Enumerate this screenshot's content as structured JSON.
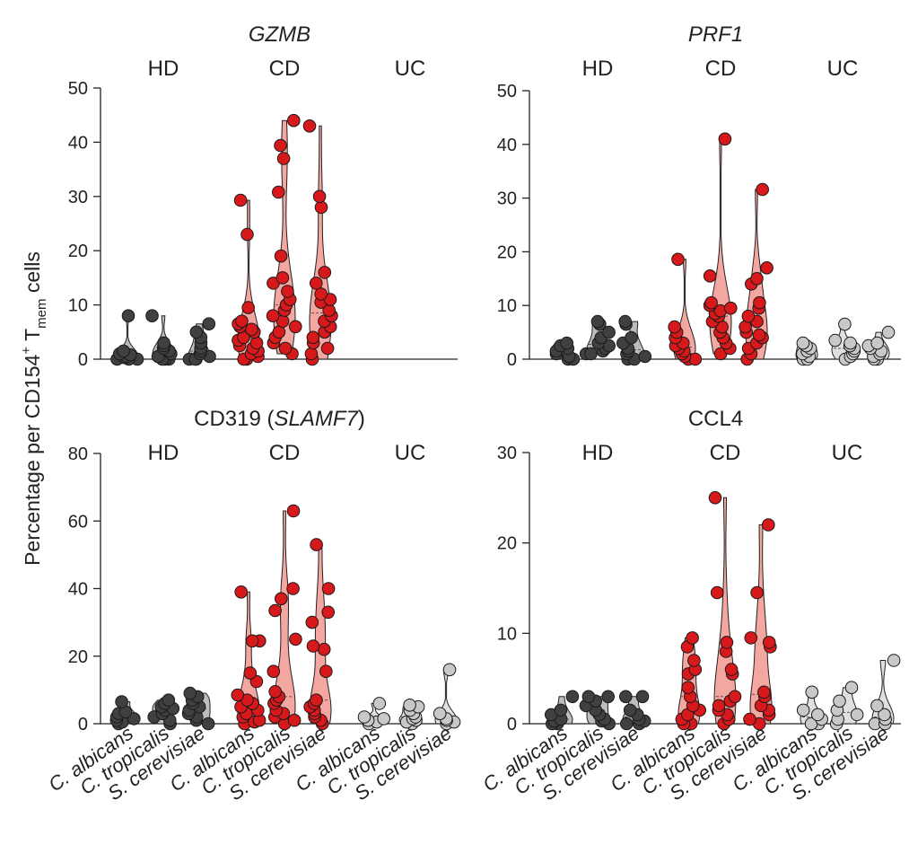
{
  "figure": {
    "y_axis_label": {
      "prefix": "Percentage per CD154",
      "superscript": "+",
      "middle": " T",
      "subscript": "mem",
      "suffix": " cells"
    }
  },
  "chart_data": [
    {
      "type": "violin-strip",
      "title": "GZMB",
      "title_parts": [
        {
          "text": "GZMB",
          "italic": true
        }
      ],
      "ylim": [
        0,
        50
      ],
      "yticks": [
        0,
        10,
        20,
        30,
        40,
        50
      ],
      "groups": [
        "HD",
        "CD",
        "UC"
      ],
      "categories": [
        "C. albicans",
        "C. tropicalis",
        "S. cerevisiae"
      ],
      "show_x_labels": false,
      "colors": {
        "HD": "#404040",
        "CD": "#d7191c",
        "UC": "#c8c8c8"
      },
      "violin_fill": {
        "HD": "#bdbdbd",
        "CD": "#f4a6a1",
        "UC": "#e0e0e0"
      },
      "series": [
        {
          "group": "HD",
          "category": "C. albicans",
          "values": [
            0,
            0,
            0,
            0.3,
            0.5,
            0.8,
            1,
            1.5,
            8
          ]
        },
        {
          "group": "HD",
          "category": "C. tropicalis",
          "values": [
            0,
            0,
            0,
            0.5,
            1,
            1.5,
            2,
            2.5,
            3,
            8
          ]
        },
        {
          "group": "HD",
          "category": "S. cerevisiae",
          "values": [
            0,
            0,
            0,
            0.5,
            1,
            1.5,
            2,
            3,
            4,
            5,
            6.5
          ]
        },
        {
          "group": "CD",
          "category": "C. albicans",
          "values": [
            0,
            0,
            0.5,
            1,
            1.5,
            2,
            2.5,
            3,
            3.5,
            4,
            5,
            5.5,
            6,
            6.5,
            7,
            9.5,
            23,
            29.3
          ]
        },
        {
          "group": "CD",
          "category": "C. tropicalis",
          "values": [
            1,
            2,
            3,
            4,
            5,
            6,
            7,
            8,
            9,
            10,
            11,
            12.5,
            14,
            15,
            19,
            30.8,
            37,
            39.4,
            44
          ]
        },
        {
          "group": "CD",
          "category": "S. cerevisiae",
          "values": [
            0,
            1,
            2,
            3,
            4,
            5,
            6,
            7,
            8,
            9,
            10.5,
            11,
            12,
            14,
            16,
            28,
            30,
            43
          ]
        }
      ]
    },
    {
      "type": "violin-strip",
      "title": "PRF1",
      "title_parts": [
        {
          "text": "PRF1",
          "italic": true
        }
      ],
      "ylim": [
        0,
        50
      ],
      "yticks": [
        0,
        10,
        20,
        30,
        40,
        50
      ],
      "groups": [
        "HD",
        "CD",
        "UC"
      ],
      "categories": [
        "C. albicans",
        "C. tropicalis",
        "S. cerevisiae"
      ],
      "show_x_labels": false,
      "colors": {
        "HD": "#404040",
        "CD": "#d7191c",
        "UC": "#c8c8c8"
      },
      "violin_fill": {
        "HD": "#bdbdbd",
        "CD": "#f4a6a1",
        "UC": "#e0e0e0"
      },
      "series": [
        {
          "group": "HD",
          "category": "C. albicans",
          "values": [
            0,
            0,
            0.5,
            1,
            1.5,
            2,
            2.5,
            3
          ]
        },
        {
          "group": "HD",
          "category": "C. tropicalis",
          "values": [
            1,
            1,
            1.5,
            2,
            2.5,
            3,
            4,
            5,
            6.5,
            7
          ]
        },
        {
          "group": "HD",
          "category": "S. cerevisiae",
          "values": [
            0,
            0,
            0.5,
            1,
            1.5,
            2,
            3,
            4,
            6.5,
            7
          ]
        },
        {
          "group": "CD",
          "category": "C. albicans",
          "values": [
            0,
            0,
            0.5,
            1,
            1.5,
            2,
            2.5,
            3,
            4,
            5,
            6,
            18.6
          ]
        },
        {
          "group": "CD",
          "category": "C. tropicalis",
          "values": [
            1,
            2,
            3,
            4,
            5,
            6,
            7,
            8,
            8.5,
            9,
            9.5,
            10,
            10.5,
            15.5,
            41
          ]
        },
        {
          "group": "CD",
          "category": "S. cerevisiae",
          "values": [
            0,
            1,
            2,
            3,
            4,
            4.5,
            5,
            6,
            7,
            8,
            9.5,
            10.5,
            14,
            15,
            17,
            31.6
          ]
        },
        {
          "group": "UC",
          "category": "C. albicans",
          "values": [
            0,
            0,
            0.5,
            1,
            1.5,
            2,
            2.5,
            3
          ]
        },
        {
          "group": "UC",
          "category": "C. tropicalis",
          "values": [
            0,
            0.5,
            1,
            1.5,
            2,
            2.5,
            3,
            3.5,
            6.5
          ]
        },
        {
          "group": "UC",
          "category": "S. cerevisiae",
          "values": [
            0,
            0,
            0.5,
            1,
            1.5,
            2,
            2.5,
            3,
            5
          ]
        }
      ]
    },
    {
      "type": "violin-strip",
      "title": "CD319 (SLAMF7)",
      "title_parts": [
        {
          "text": "CD319 (",
          "italic": false
        },
        {
          "text": "SLAMF7",
          "italic": true
        },
        {
          "text": ")",
          "italic": false
        }
      ],
      "ylim": [
        0,
        80
      ],
      "yticks": [
        0,
        20,
        40,
        60,
        80
      ],
      "groups": [
        "HD",
        "CD",
        "UC"
      ],
      "categories": [
        "C. albicans",
        "C. tropicalis",
        "S. cerevisiae"
      ],
      "show_x_labels": true,
      "colors": {
        "HD": "#404040",
        "CD": "#d7191c",
        "UC": "#c8c8c8"
      },
      "violin_fill": {
        "HD": "#bdbdbd",
        "CD": "#f4a6a1",
        "UC": "#e0e0e0"
      },
      "series": [
        {
          "group": "HD",
          "category": "C. albicans",
          "values": [
            0,
            0.5,
            1,
            1.5,
            2,
            3,
            3.5,
            6.5
          ]
        },
        {
          "group": "HD",
          "category": "C. tropicalis",
          "values": [
            0,
            1,
            2,
            3,
            4,
            4.5,
            5,
            6,
            7
          ]
        },
        {
          "group": "HD",
          "category": "S. cerevisiae",
          "values": [
            0,
            1,
            2,
            3,
            4,
            5,
            6,
            7,
            8,
            9
          ]
        },
        {
          "group": "CD",
          "category": "C. albicans",
          "values": [
            0,
            0.5,
            1,
            2,
            3,
            4,
            5,
            6,
            7,
            8.5,
            12.5,
            15,
            24.5,
            24.5,
            39
          ]
        },
        {
          "group": "CD",
          "category": "C. tropicalis",
          "values": [
            0,
            1,
            2,
            3,
            4,
            6,
            7,
            8,
            9.5,
            15.5,
            25,
            33.5,
            37,
            40,
            63
          ]
        },
        {
          "group": "CD",
          "category": "S. cerevisiae",
          "values": [
            0,
            1,
            2,
            3,
            4,
            5,
            6,
            7,
            15.5,
            22,
            23,
            30,
            33,
            40,
            53
          ]
        },
        {
          "group": "UC",
          "category": "C. albicans",
          "values": [
            0,
            0.5,
            1,
            1.5,
            2,
            6
          ]
        },
        {
          "group": "UC",
          "category": "C. tropicalis",
          "values": [
            0,
            0.5,
            1,
            1.5,
            2,
            3,
            4,
            5,
            5.5
          ]
        },
        {
          "group": "UC",
          "category": "S. cerevisiae",
          "values": [
            0,
            0.5,
            1,
            1.5,
            3,
            16
          ]
        }
      ]
    },
    {
      "type": "violin-strip",
      "title": "CCL4",
      "title_parts": [
        {
          "text": "CCL4",
          "italic": false
        }
      ],
      "ylim": [
        0,
        30
      ],
      "yticks": [
        0,
        10,
        20,
        30
      ],
      "groups": [
        "HD",
        "CD",
        "UC"
      ],
      "categories": [
        "C. albicans",
        "C. tropicalis",
        "S. cerevisiae"
      ],
      "show_x_labels": true,
      "colors": {
        "HD": "#404040",
        "CD": "#d7191c",
        "UC": "#c8c8c8"
      },
      "violin_fill": {
        "HD": "#bdbdbd",
        "CD": "#f4a6a1",
        "UC": "#e0e0e0"
      },
      "series": [
        {
          "group": "HD",
          "category": "C. albicans",
          "values": [
            0,
            0,
            0.3,
            0.5,
            1,
            1.5,
            3
          ]
        },
        {
          "group": "HD",
          "category": "C. tropicalis",
          "values": [
            0,
            0.3,
            0.5,
            1,
            1.5,
            2,
            2.5,
            3,
            3
          ]
        },
        {
          "group": "HD",
          "category": "S. cerevisiae",
          "values": [
            0,
            0,
            0.3,
            0.5,
            1,
            1.5,
            3,
            3
          ]
        },
        {
          "group": "CD",
          "category": "C. albicans",
          "values": [
            0,
            0,
            0.5,
            1,
            1.5,
            2,
            3,
            4,
            5.5,
            6,
            7,
            8.5,
            9.5
          ]
        },
        {
          "group": "CD",
          "category": "C. tropicalis",
          "values": [
            0,
            0.5,
            1,
            1.5,
            2,
            2.5,
            3,
            5.5,
            6,
            8,
            9,
            14.5,
            25
          ]
        },
        {
          "group": "CD",
          "category": "S. cerevisiae",
          "values": [
            0,
            0.5,
            1,
            1.5,
            2,
            3,
            3.5,
            8.5,
            9,
            9.5,
            14.5,
            22
          ]
        },
        {
          "group": "UC",
          "category": "C. albicans",
          "values": [
            0,
            0,
            0.5,
            1,
            1.5,
            3.5
          ]
        },
        {
          "group": "UC",
          "category": "C. tropicalis",
          "values": [
            0,
            0.5,
            1,
            1.5,
            2.5,
            4
          ]
        },
        {
          "group": "UC",
          "category": "S. cerevisiae",
          "values": [
            0,
            0,
            0.5,
            1,
            2,
            7
          ]
        }
      ]
    }
  ]
}
